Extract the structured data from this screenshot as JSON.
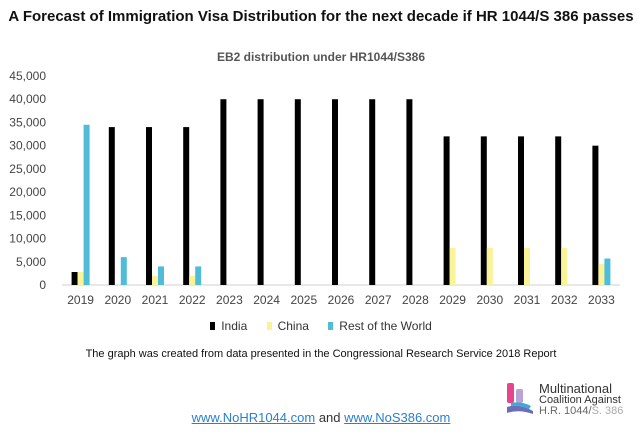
{
  "title": "A Forecast of Immigration Visa Distribution for the next decade if HR 1044/S 386 passes",
  "chart_data": {
    "type": "bar",
    "title": "EB2 distribution under HR1044/S386",
    "xlabel": "",
    "ylabel": "",
    "ylim": [
      0,
      45000
    ],
    "yticks": [
      0,
      5000,
      10000,
      15000,
      20000,
      25000,
      30000,
      35000,
      40000,
      45000
    ],
    "ytick_labels": [
      "0",
      "5,000",
      "10,000",
      "15,000",
      "20,000",
      "25,000",
      "30,000",
      "35,000",
      "40,000",
      "45,000"
    ],
    "categories": [
      "2019",
      "2020",
      "2021",
      "2022",
      "2023",
      "2024",
      "2025",
      "2026",
      "2027",
      "2028",
      "2029",
      "2030",
      "2031",
      "2032",
      "2033"
    ],
    "series": [
      {
        "name": "India",
        "color": "#000000",
        "values": [
          2800,
          34000,
          34000,
          34000,
          40000,
          40000,
          40000,
          40000,
          40000,
          40000,
          32000,
          32000,
          32000,
          32000,
          30000
        ]
      },
      {
        "name": "China",
        "color": "#faf398",
        "values": [
          2800,
          0,
          2000,
          2000,
          0,
          0,
          0,
          0,
          0,
          0,
          8000,
          8000,
          8000,
          8000,
          4500
        ]
      },
      {
        "name": "Rest of the World",
        "color": "#4fbcd8",
        "values": [
          34500,
          6000,
          4000,
          4000,
          0,
          0,
          0,
          0,
          0,
          0,
          0,
          0,
          0,
          0,
          5700
        ]
      }
    ],
    "grid": false,
    "legend_position": "bottom"
  },
  "note": "The graph was created from data presented in the Congressional Research Service 2018 Report",
  "footer": {
    "link1": "www.NoHR1044.com",
    "connector": "and",
    "link2": "www.NoS386.com"
  },
  "logo": {
    "line1": "Multinational",
    "line2": "Coalition Against",
    "line3a": "H.R. 1044/",
    "line3b": "S. 386",
    "colors": [
      "#e8438e",
      "#b7a3d6",
      "#6a6fb8",
      "#3fa9d6"
    ]
  }
}
